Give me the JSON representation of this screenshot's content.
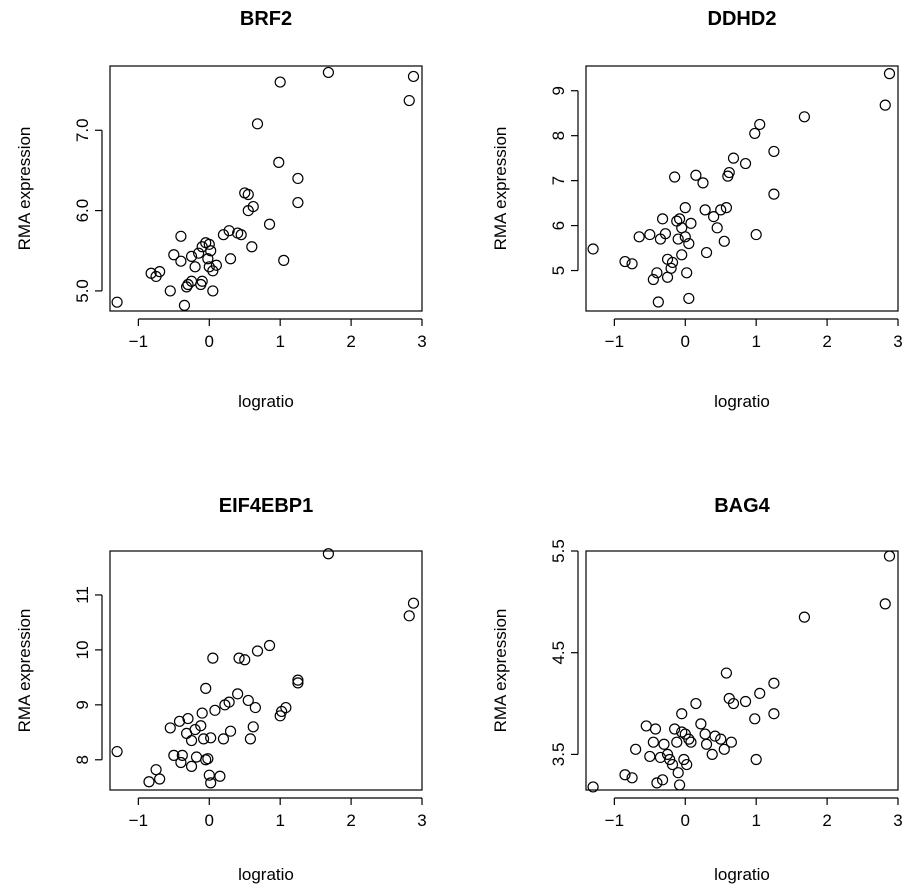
{
  "chart_data": [
    {
      "type": "scatter",
      "title": "BRF2",
      "xlabel": "logratio",
      "ylabel": "RMA expression",
      "xlim": [
        -1.4,
        3.0
      ],
      "ylim": [
        4.75,
        7.8
      ],
      "xticks": [
        -1,
        0,
        1,
        2,
        3
      ],
      "xtick_labels": [
        "−1",
        "0",
        "1",
        "2",
        "3"
      ],
      "yticks": [
        5.0,
        6.0,
        7.0
      ],
      "ytick_labels": [
        "5.0",
        "6.0",
        "7.0"
      ],
      "points": [
        [
          -1.3,
          4.86
        ],
        [
          -0.82,
          5.22
        ],
        [
          -0.75,
          5.18
        ],
        [
          -0.7,
          5.24
        ],
        [
          -0.55,
          5.0
        ],
        [
          -0.5,
          5.45
        ],
        [
          -0.4,
          5.68
        ],
        [
          -0.4,
          5.37
        ],
        [
          -0.35,
          4.82
        ],
        [
          -0.32,
          5.05
        ],
        [
          -0.3,
          5.08
        ],
        [
          -0.25,
          5.12
        ],
        [
          -0.25,
          5.43
        ],
        [
          -0.2,
          5.3
        ],
        [
          -0.15,
          5.47
        ],
        [
          -0.12,
          5.08
        ],
        [
          -0.1,
          5.12
        ],
        [
          -0.1,
          5.55
        ],
        [
          -0.05,
          5.6
        ],
        [
          -0.02,
          5.4
        ],
        [
          0.0,
          5.58
        ],
        [
          0.0,
          5.3
        ],
        [
          0.02,
          5.5
        ],
        [
          0.05,
          5.25
        ],
        [
          0.05,
          5.0
        ],
        [
          0.1,
          5.32
        ],
        [
          0.2,
          5.7
        ],
        [
          0.28,
          5.75
        ],
        [
          0.3,
          5.4
        ],
        [
          0.4,
          5.72
        ],
        [
          0.45,
          5.7
        ],
        [
          0.5,
          6.22
        ],
        [
          0.55,
          6.0
        ],
        [
          0.55,
          6.2
        ],
        [
          0.6,
          5.55
        ],
        [
          0.62,
          6.05
        ],
        [
          0.68,
          7.08
        ],
        [
          0.85,
          5.83
        ],
        [
          0.98,
          6.6
        ],
        [
          1.0,
          7.6
        ],
        [
          1.05,
          5.38
        ],
        [
          1.25,
          6.4
        ],
        [
          1.25,
          6.1
        ],
        [
          1.68,
          7.72
        ],
        [
          2.82,
          7.37
        ],
        [
          2.88,
          7.67
        ]
      ]
    },
    {
      "type": "scatter",
      "title": "DDHD2",
      "xlabel": "logratio",
      "ylabel": "RMA expression",
      "xlim": [
        -1.4,
        3.0
      ],
      "ylim": [
        4.1,
        9.55
      ],
      "xticks": [
        -1,
        0,
        1,
        2,
        3
      ],
      "xtick_labels": [
        "−1",
        "0",
        "1",
        "2",
        "3"
      ],
      "yticks": [
        5,
        6,
        7,
        8,
        9
      ],
      "ytick_labels": [
        "5",
        "6",
        "7",
        "8",
        "9"
      ],
      "points": [
        [
          -1.3,
          5.48
        ],
        [
          -0.85,
          5.2
        ],
        [
          -0.75,
          5.15
        ],
        [
          -0.65,
          5.75
        ],
        [
          -0.5,
          5.8
        ],
        [
          -0.45,
          4.8
        ],
        [
          -0.4,
          4.95
        ],
        [
          -0.38,
          4.3
        ],
        [
          -0.35,
          5.7
        ],
        [
          -0.32,
          6.15
        ],
        [
          -0.28,
          5.82
        ],
        [
          -0.25,
          4.85
        ],
        [
          -0.25,
          5.25
        ],
        [
          -0.2,
          5.05
        ],
        [
          -0.18,
          5.18
        ],
        [
          -0.15,
          7.08
        ],
        [
          -0.12,
          6.1
        ],
        [
          -0.1,
          5.7
        ],
        [
          -0.08,
          6.15
        ],
        [
          -0.05,
          5.35
        ],
        [
          -0.05,
          5.95
        ],
        [
          0.0,
          6.4
        ],
        [
          0.0,
          5.75
        ],
        [
          0.02,
          4.95
        ],
        [
          0.05,
          4.38
        ],
        [
          0.05,
          5.6
        ],
        [
          0.08,
          6.05
        ],
        [
          0.15,
          7.12
        ],
        [
          0.25,
          6.95
        ],
        [
          0.28,
          6.35
        ],
        [
          0.3,
          5.4
        ],
        [
          0.4,
          6.2
        ],
        [
          0.45,
          5.95
        ],
        [
          0.5,
          6.35
        ],
        [
          0.55,
          5.65
        ],
        [
          0.58,
          6.4
        ],
        [
          0.6,
          7.1
        ],
        [
          0.62,
          7.18
        ],
        [
          0.68,
          7.5
        ],
        [
          0.85,
          7.38
        ],
        [
          0.98,
          8.05
        ],
        [
          1.0,
          5.8
        ],
        [
          1.05,
          8.25
        ],
        [
          1.25,
          7.65
        ],
        [
          1.25,
          6.7
        ],
        [
          1.68,
          8.42
        ],
        [
          2.82,
          8.68
        ],
        [
          2.88,
          9.38
        ]
      ]
    },
    {
      "type": "scatter",
      "title": "EIF4EBP1",
      "xlabel": "logratio",
      "ylabel": "RMA expression",
      "xlim": [
        -1.4,
        3.0
      ],
      "ylim": [
        7.45,
        11.8
      ],
      "xticks": [
        -1,
        0,
        1,
        2,
        3
      ],
      "xtick_labels": [
        "−1",
        "0",
        "1",
        "2",
        "3"
      ],
      "yticks": [
        8,
        9,
        10,
        11
      ],
      "ytick_labels": [
        "8",
        "9",
        "10",
        "11"
      ],
      "points": [
        [
          -1.3,
          8.15
        ],
        [
          -0.85,
          7.6
        ],
        [
          -0.75,
          7.82
        ],
        [
          -0.7,
          7.65
        ],
        [
          -0.55,
          8.58
        ],
        [
          -0.5,
          8.08
        ],
        [
          -0.42,
          8.7
        ],
        [
          -0.4,
          7.95
        ],
        [
          -0.38,
          8.08
        ],
        [
          -0.32,
          8.48
        ],
        [
          -0.3,
          8.75
        ],
        [
          -0.25,
          7.88
        ],
        [
          -0.25,
          8.35
        ],
        [
          -0.2,
          8.55
        ],
        [
          -0.18,
          8.05
        ],
        [
          -0.12,
          8.62
        ],
        [
          -0.1,
          8.85
        ],
        [
          -0.08,
          8.38
        ],
        [
          -0.05,
          9.3
        ],
        [
          -0.05,
          8.0
        ],
        [
          -0.02,
          8.02
        ],
        [
          0.0,
          7.72
        ],
        [
          0.02,
          8.4
        ],
        [
          0.02,
          7.58
        ],
        [
          0.05,
          9.85
        ],
        [
          0.08,
          8.9
        ],
        [
          0.15,
          7.7
        ],
        [
          0.2,
          8.38
        ],
        [
          0.22,
          9.0
        ],
        [
          0.28,
          9.05
        ],
        [
          0.3,
          8.52
        ],
        [
          0.4,
          9.2
        ],
        [
          0.42,
          9.85
        ],
        [
          0.5,
          9.82
        ],
        [
          0.55,
          9.08
        ],
        [
          0.58,
          8.38
        ],
        [
          0.62,
          8.6
        ],
        [
          0.65,
          8.95
        ],
        [
          0.68,
          9.98
        ],
        [
          0.85,
          10.08
        ],
        [
          1.0,
          8.8
        ],
        [
          1.02,
          8.88
        ],
        [
          1.08,
          8.95
        ],
        [
          1.25,
          9.4
        ],
        [
          1.25,
          9.45
        ],
        [
          1.68,
          11.75
        ],
        [
          2.82,
          10.62
        ],
        [
          2.88,
          10.85
        ]
      ]
    },
    {
      "type": "scatter",
      "title": "BAG4",
      "xlabel": "logratio",
      "ylabel": "RMA expression",
      "xlim": [
        -1.4,
        3.0
      ],
      "ylim": [
        3.15,
        5.5
      ],
      "xticks": [
        -1,
        0,
        1,
        2,
        3
      ],
      "xtick_labels": [
        "−1",
        "0",
        "1",
        "2",
        "3"
      ],
      "yticks": [
        3.5,
        4.5,
        5.5
      ],
      "ytick_labels": [
        "3.5",
        "4.5",
        "5.5"
      ],
      "points": [
        [
          -1.3,
          3.18
        ],
        [
          -0.85,
          3.3
        ],
        [
          -0.75,
          3.27
        ],
        [
          -0.7,
          3.55
        ],
        [
          -0.55,
          3.78
        ],
        [
          -0.5,
          3.48
        ],
        [
          -0.45,
          3.62
        ],
        [
          -0.42,
          3.75
        ],
        [
          -0.4,
          3.22
        ],
        [
          -0.35,
          3.47
        ],
        [
          -0.32,
          3.25
        ],
        [
          -0.3,
          3.6
        ],
        [
          -0.25,
          3.5
        ],
        [
          -0.22,
          3.45
        ],
        [
          -0.18,
          3.4
        ],
        [
          -0.15,
          3.75
        ],
        [
          -0.12,
          3.62
        ],
        [
          -0.1,
          3.32
        ],
        [
          -0.08,
          3.2
        ],
        [
          -0.05,
          3.72
        ],
        [
          -0.05,
          3.9
        ],
        [
          -0.02,
          3.45
        ],
        [
          0.0,
          3.7
        ],
        [
          0.02,
          3.4
        ],
        [
          0.05,
          3.65
        ],
        [
          0.08,
          3.62
        ],
        [
          0.15,
          4.0
        ],
        [
          0.22,
          3.8
        ],
        [
          0.28,
          3.7
        ],
        [
          0.3,
          3.6
        ],
        [
          0.38,
          3.5
        ],
        [
          0.42,
          3.68
        ],
        [
          0.5,
          3.65
        ],
        [
          0.55,
          3.55
        ],
        [
          0.58,
          4.3
        ],
        [
          0.62,
          4.05
        ],
        [
          0.65,
          3.62
        ],
        [
          0.68,
          4.0
        ],
        [
          0.85,
          4.02
        ],
        [
          0.98,
          3.85
        ],
        [
          1.0,
          3.45
        ],
        [
          1.05,
          4.1
        ],
        [
          1.25,
          3.9
        ],
        [
          1.25,
          4.2
        ],
        [
          1.68,
          4.85
        ],
        [
          2.82,
          4.98
        ],
        [
          2.88,
          5.45
        ]
      ]
    }
  ]
}
